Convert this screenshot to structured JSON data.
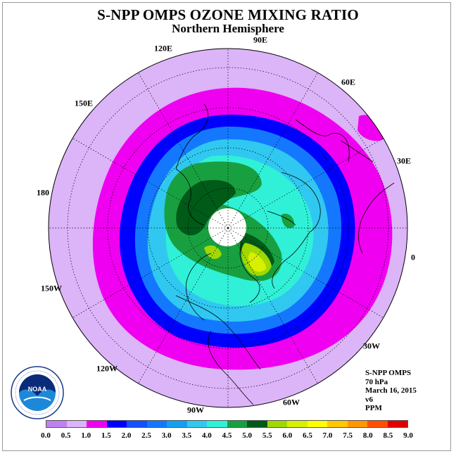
{
  "header": {
    "title": "S-NPP OMPS OZONE MIXING RATIO",
    "subtitle": "Northern Hemisphere"
  },
  "longitude_labels": [
    "90E",
    "60E",
    "30E",
    "0",
    "30W",
    "60W",
    "90W",
    "120W",
    "150W",
    "180",
    "150E",
    "120E"
  ],
  "info": {
    "instrument": "S-NPP OMPS",
    "level": "70 hPa",
    "date": "March 16, 2015",
    "version": "v6",
    "units": "PPM"
  },
  "legend": {
    "ticks": [
      "0.0",
      "0.5",
      "1.0",
      "1.5",
      "2.0",
      "2.5",
      "3.0",
      "3.5",
      "4.0",
      "4.5",
      "5.0",
      "5.5",
      "6.0",
      "6.5",
      "7.0",
      "7.5",
      "8.0",
      "8.5",
      "9.0"
    ],
    "colors": [
      "#c080f0",
      "#dcb4f8",
      "#f000f0",
      "#0000ff",
      "#1450ff",
      "#1478ff",
      "#14a0f0",
      "#30c8f0",
      "#30f0d8",
      "#18a040",
      "#005a18",
      "#a0d800",
      "#d8f000",
      "#ffff00",
      "#ffc800",
      "#ff9600",
      "#ff5000",
      "#e00000",
      "#8a5a3a"
    ]
  },
  "logo": {
    "text": "NOAA"
  },
  "colors": {
    "band_outer": "#dcb4f8",
    "band_magenta": "#f000f0",
    "band_blue": "#0000ff",
    "band_mid_blue": "#1478ff",
    "band_cyan": "#30c8f0",
    "band_teal": "#30f0d8",
    "band_green": "#18a040",
    "band_dark_green": "#005a18",
    "band_yellow_green": "#a0d800",
    "band_yellow": "#d8f000"
  }
}
